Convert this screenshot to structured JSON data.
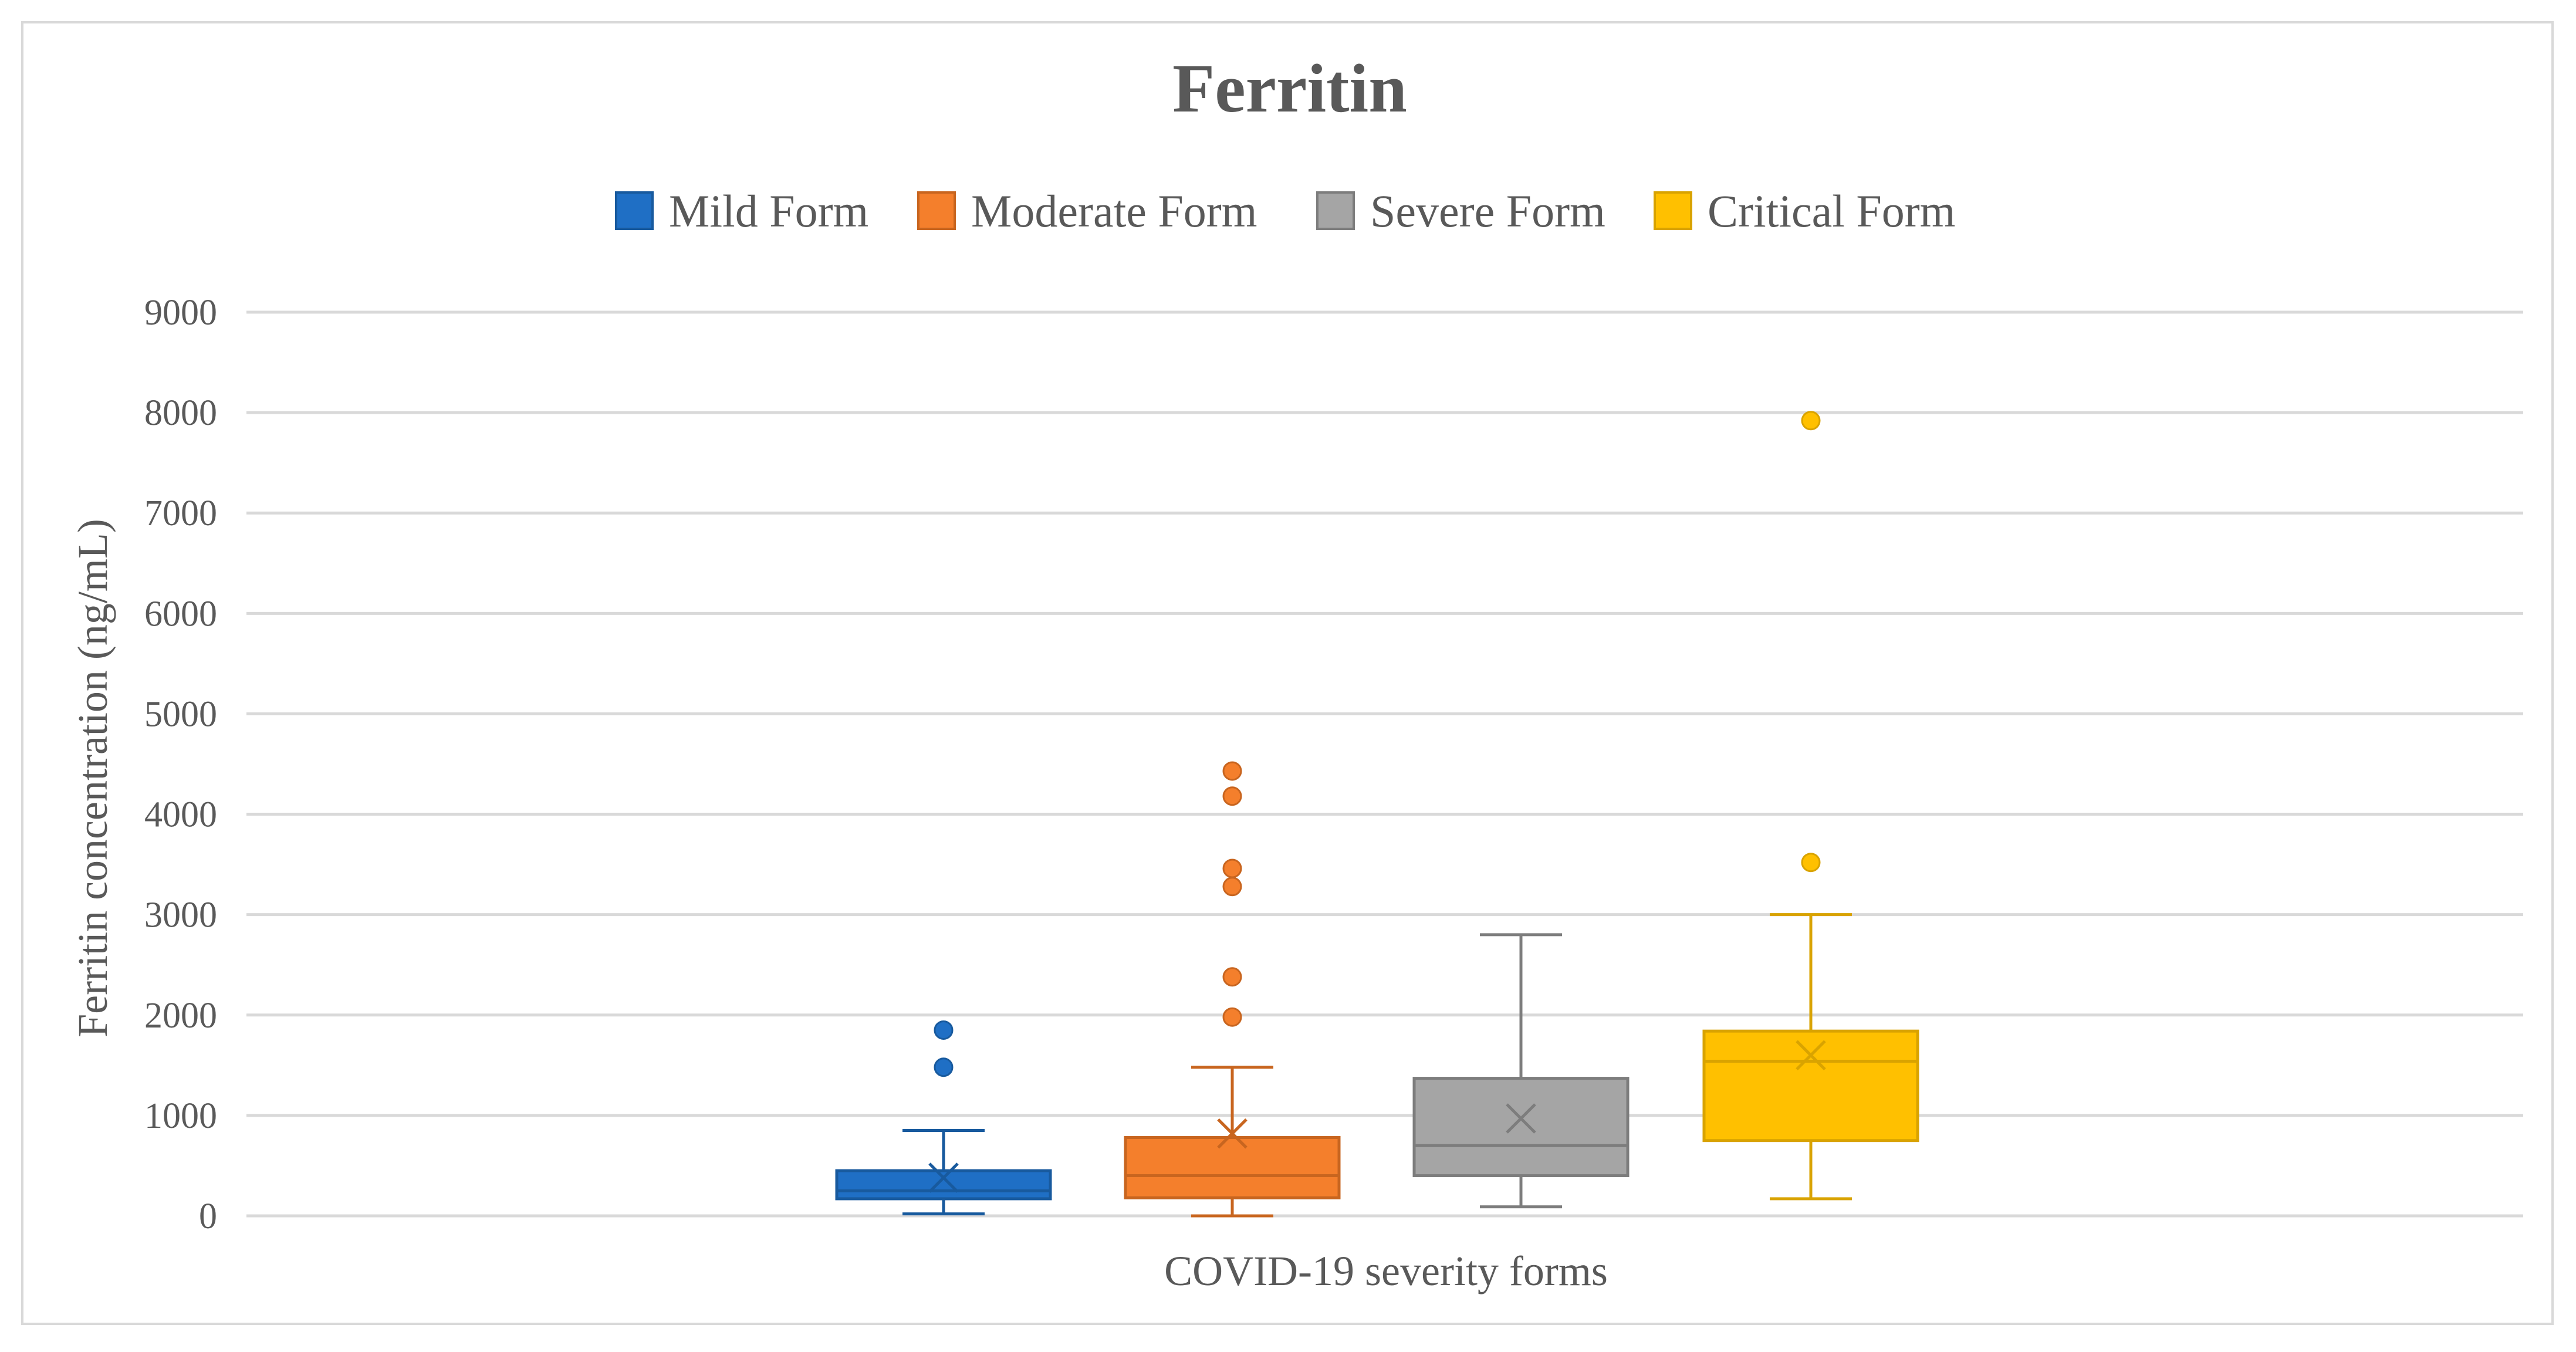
{
  "chart_data": {
    "type": "boxplot",
    "title": "Ferritin",
    "xlabel": "COVID-19 severity forms",
    "ylabel": "Ferritin concentration (ng/mL)",
    "ylim": [
      0,
      9000
    ],
    "yticks": [
      "0",
      "1000",
      "2000",
      "3000",
      "4000",
      "5000",
      "6000",
      "7000",
      "8000",
      "9000"
    ],
    "grid": true,
    "legend_position": "top-center",
    "series": [
      {
        "name": "Mild Form",
        "color": "#1f6fc5",
        "edge_color": "#185a9e",
        "min": 20,
        "q1": 170,
        "median": 250,
        "q3": 450,
        "max": 850,
        "mean": 380,
        "outliers": [
          1480,
          1850
        ]
      },
      {
        "name": "Moderate Form",
        "color": "#f47f2c",
        "edge_color": "#c8651f",
        "min": 0,
        "q1": 180,
        "median": 400,
        "q3": 780,
        "max": 1480,
        "mean": 820,
        "outliers": [
          1980,
          2380,
          3280,
          3460,
          4180,
          4430
        ]
      },
      {
        "name": "Severe Form",
        "color": "#a5a5a5",
        "edge_color": "#7d7d7d",
        "min": 90,
        "q1": 400,
        "median": 700,
        "q3": 1370,
        "max": 2800,
        "mean": 970,
        "outliers": []
      },
      {
        "name": "Critical Form",
        "color": "#ffc000",
        "edge_color": "#d9a300",
        "min": 170,
        "q1": 750,
        "median": 1540,
        "q3": 1840,
        "max": 3000,
        "mean": 1600,
        "outliers": [
          3520,
          7920
        ]
      }
    ]
  }
}
